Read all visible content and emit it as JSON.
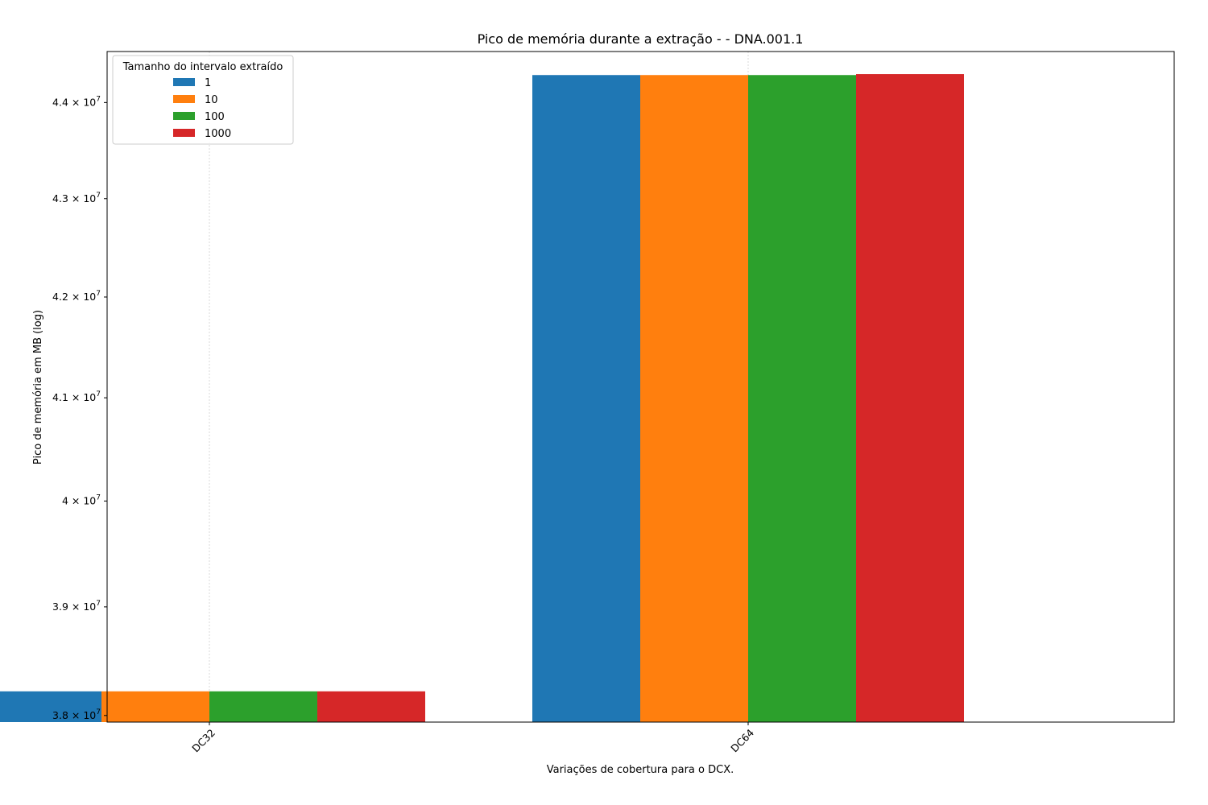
{
  "chart_data": {
    "type": "bar",
    "title": "Pico de memória durante a extração -  - DNA.001.1",
    "xlabel": "Variações de cobertura para o DCX.",
    "ylabel": "Pico de memória em MB (log)",
    "yscale": "log",
    "ylim": [
      37940000,
      44540000
    ],
    "yticks": [
      {
        "value": 38000000,
        "mantissa": "3.8"
      },
      {
        "value": 39000000,
        "mantissa": "3.9"
      },
      {
        "value": 40000000,
        "mantissa": "4"
      },
      {
        "value": 41000000,
        "mantissa": "4.1"
      },
      {
        "value": 42000000,
        "mantissa": "4.2"
      },
      {
        "value": 43000000,
        "mantissa": "4.3"
      },
      {
        "value": 44000000,
        "mantissa": "4.4"
      }
    ],
    "ytick_base": "10",
    "ytick_exponent": "7",
    "grid": true,
    "categories": [
      "DC32",
      "DC64"
    ],
    "legend": {
      "title": "Tamanho do intervalo extraído",
      "placement": "upper left"
    },
    "series": [
      {
        "name": "1",
        "color": "#1f77b4",
        "values": [
          38220000,
          44290000
        ]
      },
      {
        "name": "10",
        "color": "#ff7f0e",
        "values": [
          38220000,
          44290000
        ]
      },
      {
        "name": "100",
        "color": "#2ca02c",
        "values": [
          38220000,
          44290000
        ]
      },
      {
        "name": "1000",
        "color": "#d62728",
        "values": [
          38220000,
          44300000
        ]
      }
    ]
  }
}
